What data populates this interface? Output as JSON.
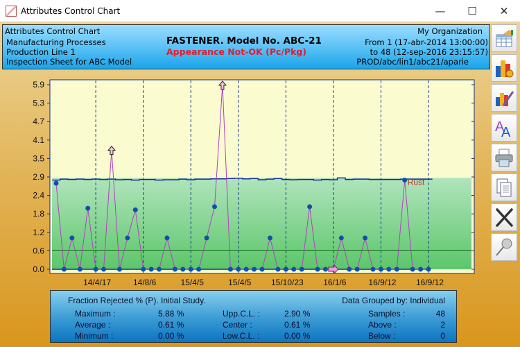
{
  "window": {
    "title": "Attributes Control Chart",
    "minimize": "—",
    "maximize": "☐",
    "close": "✕"
  },
  "header": {
    "chart_type": "Attributes Control Chart",
    "line1": "Manufacturing Processes",
    "line2": "Production Line 1",
    "line3": "Inspection Sheet for ABC Model",
    "product": "FASTENER. Model No. ABC-21",
    "characteristic": "Appearance Not-OK (Pc/Pkg)",
    "organization": "My Organization",
    "from": "From 1 (17-abr-2014  13:00:00)",
    "to": "to 48 (12-sep-2016  23:15:57)",
    "path": "PROD/abc/lin1/abc21/aparie"
  },
  "toolbar": [
    {
      "name": "data-table-icon"
    },
    {
      "name": "chart-settings-icon"
    },
    {
      "name": "chart-style-icon"
    },
    {
      "name": "font-icon"
    },
    {
      "name": "print-icon"
    },
    {
      "name": "copy-icon"
    },
    {
      "name": "close-x-icon"
    },
    {
      "name": "pin-icon"
    }
  ],
  "colors": {
    "accent": "#e8192c",
    "point": "#1050a8",
    "line": "#b040c0",
    "ucl": "#1030a0",
    "center": "#0a6a10"
  },
  "chart_data": {
    "type": "line",
    "title": "Fraction Rejected % (P)",
    "y_ticks": [
      "0.0",
      "0.6",
      "1.2",
      "1.8",
      "2.4",
      "2.9",
      "3.5",
      "4.1",
      "4.7",
      "5.3",
      "5.9"
    ],
    "y_tick_values": [
      0,
      0.59,
      1.18,
      1.77,
      2.36,
      2.95,
      3.54,
      4.13,
      4.72,
      5.31,
      5.9
    ],
    "ylim": [
      0,
      5.9
    ],
    "x_labels": [
      {
        "sample": 6,
        "label": "14/4/17"
      },
      {
        "sample": 12,
        "label": "14/8/6"
      },
      {
        "sample": 18,
        "label": "15/4/5"
      },
      {
        "sample": 24,
        "label": "15/4/5"
      },
      {
        "sample": 30,
        "label": "15/10/23"
      },
      {
        "sample": 36,
        "label": "16/1/6"
      },
      {
        "sample": 42,
        "label": "16/9/12"
      },
      {
        "sample": 48,
        "label": "16/9/12"
      }
    ],
    "values": [
      2.75,
      0,
      1.0,
      0,
      1.95,
      0,
      0,
      3.8,
      0,
      1.0,
      1.9,
      0,
      0,
      0,
      1.0,
      0,
      0,
      0,
      0,
      1.0,
      2.0,
      5.88,
      0,
      0,
      0,
      0,
      0,
      1.0,
      0,
      0,
      0,
      0,
      2.0,
      0,
      0,
      0,
      1.0,
      0,
      0,
      1.0,
      0,
      0,
      0,
      0,
      2.85,
      0,
      0,
      0
    ],
    "ucl": [
      2.85,
      2.88,
      2.87,
      2.88,
      2.87,
      2.88,
      2.87,
      2.88,
      2.86,
      2.87,
      2.85,
      2.87,
      2.87,
      2.85,
      2.86,
      2.86,
      2.88,
      2.86,
      2.88,
      2.88,
      2.89,
      2.89,
      2.9,
      2.91,
      2.89,
      2.9,
      2.86,
      2.88,
      2.9,
      2.87,
      2.86,
      2.87,
      2.87,
      2.85,
      2.87,
      2.86,
      2.92,
      2.87,
      2.88,
      2.88,
      2.87,
      2.87,
      2.87,
      2.87,
      2.88,
      2.88,
      2.88,
      2.88
    ],
    "center": 0.61,
    "lcl": 0,
    "up_arrows": [
      8,
      22
    ],
    "right_arrows": [
      36
    ],
    "annotations": [
      {
        "sample": 45,
        "text": "Rust"
      }
    ]
  },
  "stats": {
    "title": "Fraction Rejected % (P). Initial Study.",
    "grouped": "Data Grouped by: Individual",
    "max_label": "Maximum :",
    "max": "5.88 %",
    "avg_label": "Average :",
    "avg": "0.61 %",
    "min_label": "Minimum :",
    "min": "0.00 %",
    "ucl_label": "Upp.C.L. :",
    "ucl": "2.90 %",
    "center_label": "Center :",
    "center": "0.61 %",
    "lcl_label": "Low.C.L. :",
    "lcl": "0.00 %",
    "samples_label": "Samples :",
    "samples": "48",
    "above_label": "Above :",
    "above": "2",
    "below_label": "Below :",
    "below": "0"
  }
}
